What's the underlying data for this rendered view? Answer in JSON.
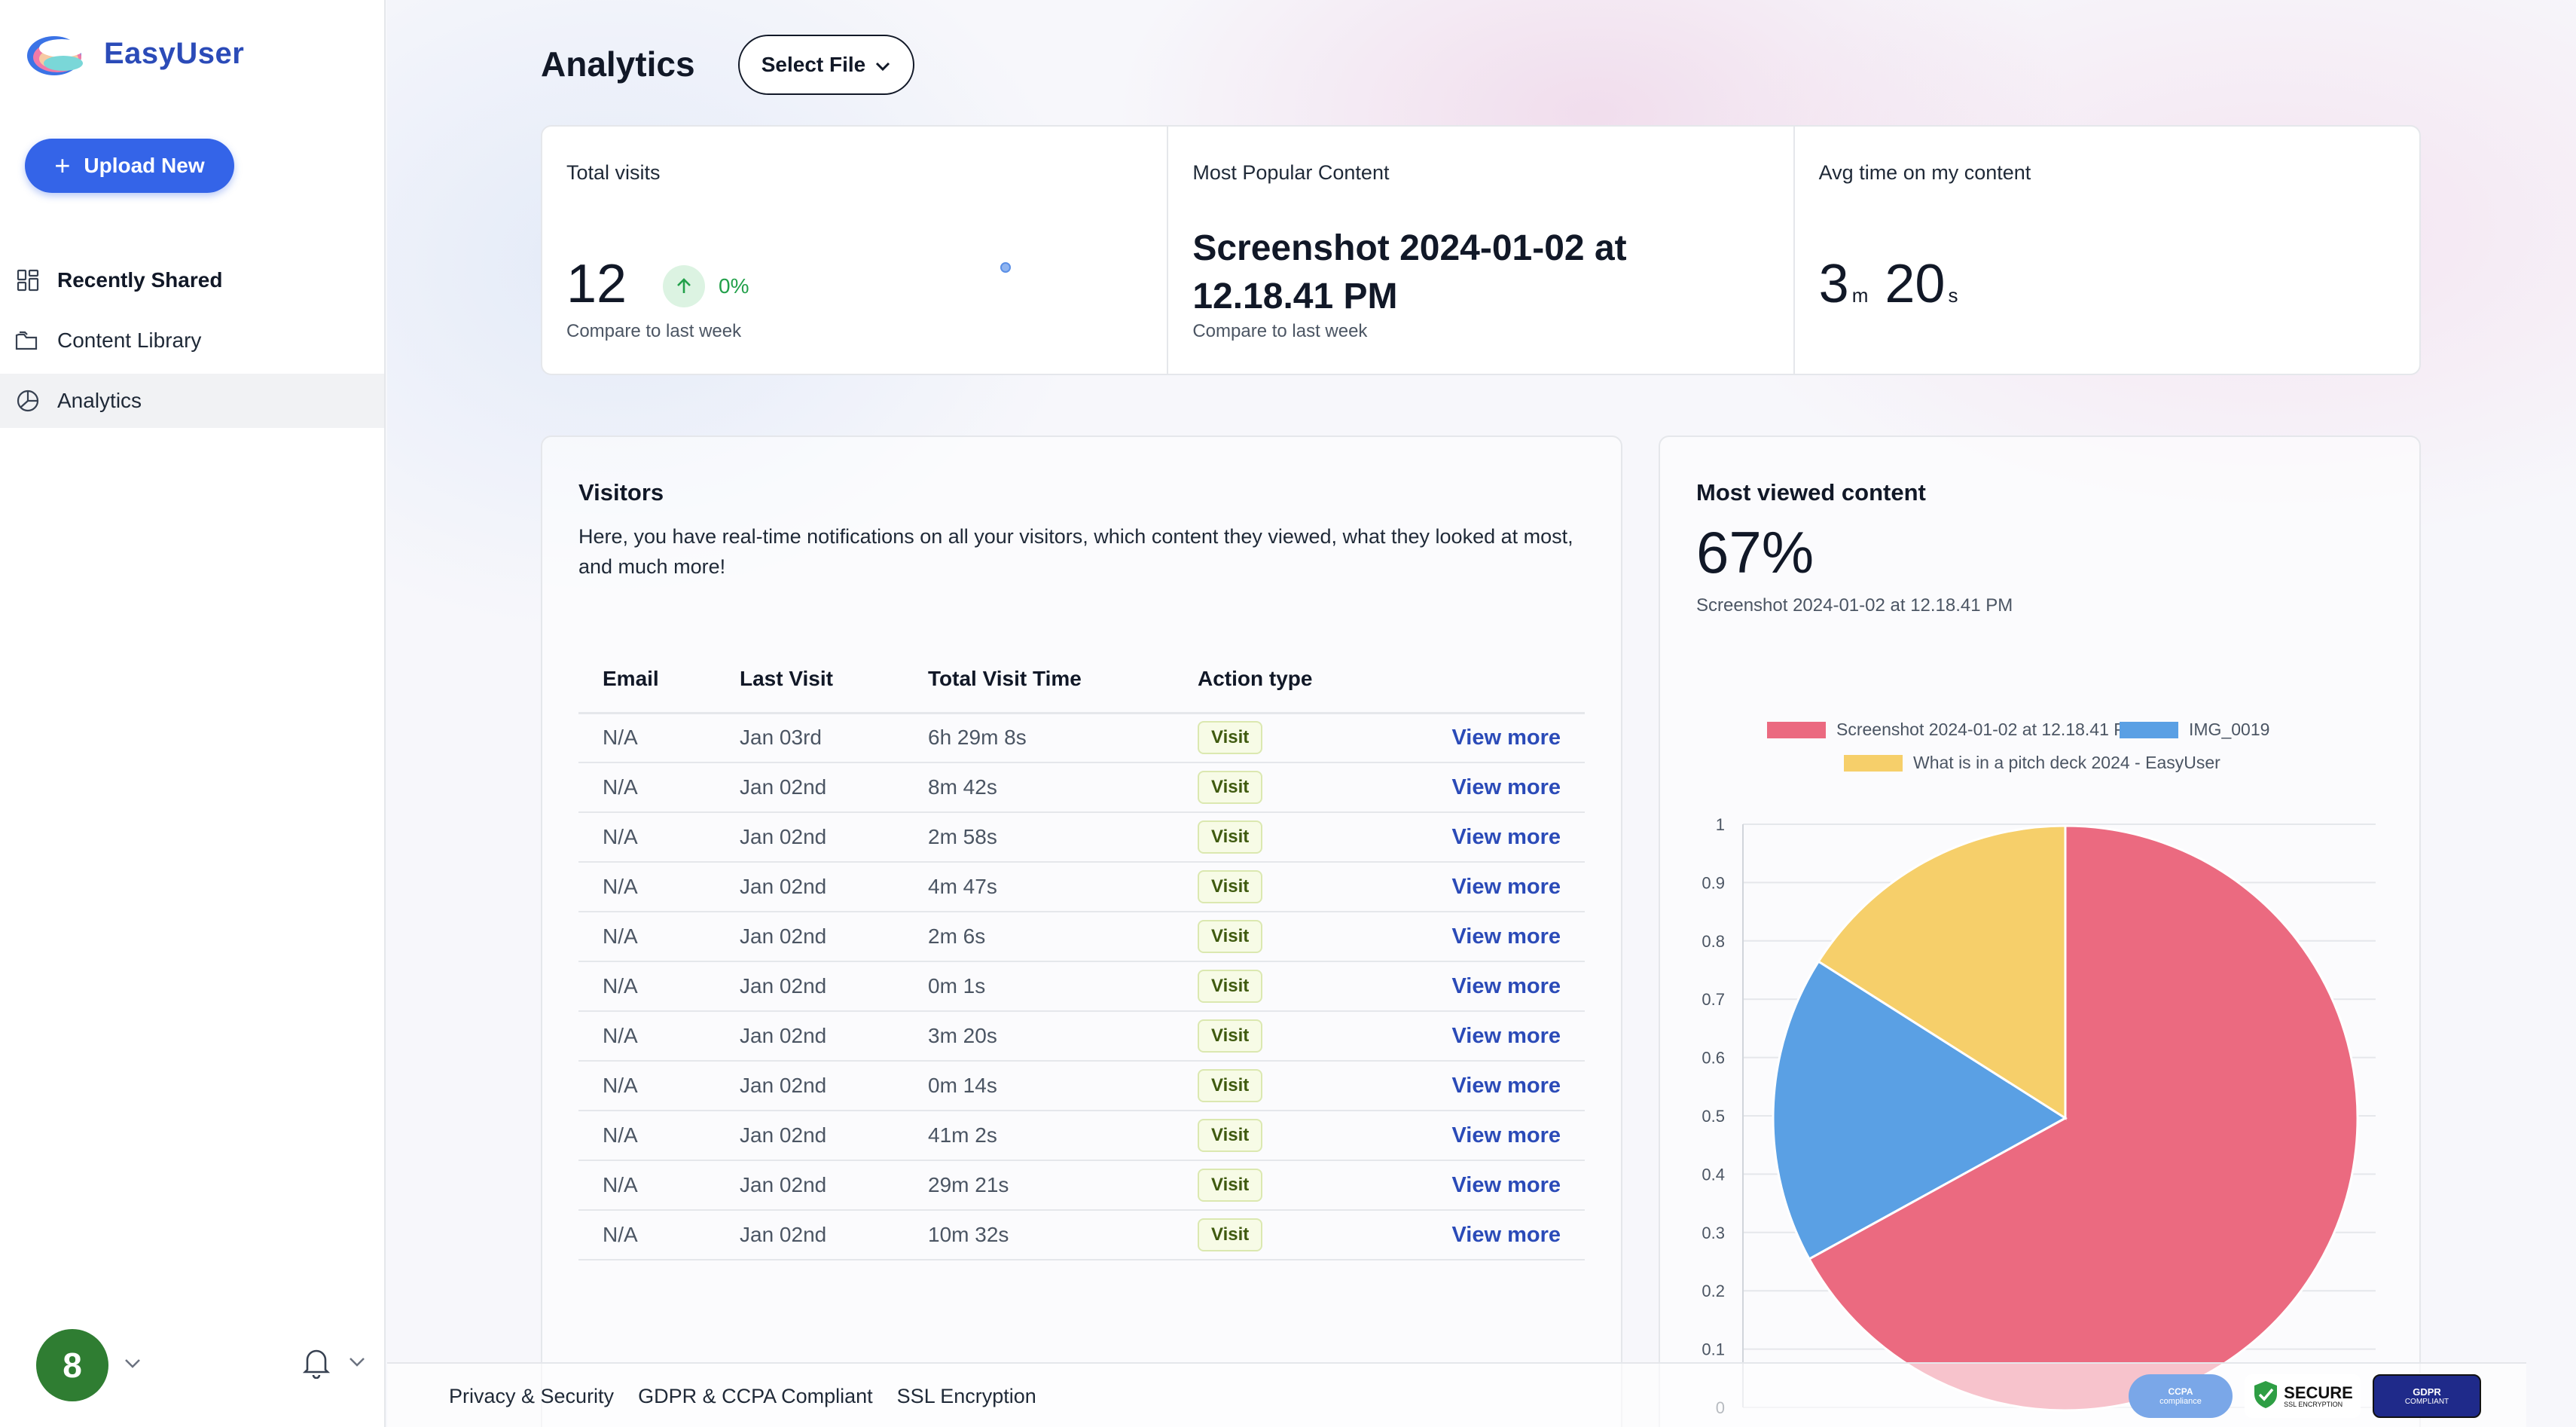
{
  "app": {
    "name": "EasyUser"
  },
  "sidebar": {
    "upload_label": "Upload New",
    "items": [
      {
        "label": "Recently Shared",
        "icon": "grid-icon"
      },
      {
        "label": "Content Library",
        "icon": "folder-icon"
      },
      {
        "label": "Analytics",
        "icon": "pie-chart-icon"
      }
    ],
    "avatar_initial": "8"
  },
  "header": {
    "title": "Analytics",
    "select_file_label": "Select File"
  },
  "stats": {
    "total_visits": {
      "label": "Total visits",
      "value": "12",
      "change": "0%",
      "compare": "Compare to last week"
    },
    "popular": {
      "label": "Most Popular Content",
      "value": "Screenshot 2024-01-02 at 12.18.41 PM",
      "compare": "Compare to last week"
    },
    "avg_time": {
      "label": "Avg time on my content",
      "minutes": "3",
      "minutes_unit": "m",
      "seconds": "20",
      "seconds_unit": "s"
    }
  },
  "visitors": {
    "title": "Visitors",
    "description": "Here, you have real-time notifications on all your visitors, which content they viewed, what they looked at most, and much more!",
    "columns": [
      "Email",
      "Last Visit",
      "Total Visit Time",
      "Action type"
    ],
    "view_more_label": "View more",
    "rows": [
      {
        "email": "N/A",
        "last": "Jan 03rd",
        "time": "6h 29m 8s",
        "action": "Visit"
      },
      {
        "email": "N/A",
        "last": "Jan 02nd",
        "time": "8m 42s",
        "action": "Visit"
      },
      {
        "email": "N/A",
        "last": "Jan 02nd",
        "time": "2m 58s",
        "action": "Visit"
      },
      {
        "email": "N/A",
        "last": "Jan 02nd",
        "time": "4m 47s",
        "action": "Visit"
      },
      {
        "email": "N/A",
        "last": "Jan 02nd",
        "time": "2m 6s",
        "action": "Visit"
      },
      {
        "email": "N/A",
        "last": "Jan 02nd",
        "time": "0m 1s",
        "action": "Visit"
      },
      {
        "email": "N/A",
        "last": "Jan 02nd",
        "time": "3m 20s",
        "action": "Visit"
      },
      {
        "email": "N/A",
        "last": "Jan 02nd",
        "time": "0m 14s",
        "action": "Visit"
      },
      {
        "email": "N/A",
        "last": "Jan 02nd",
        "time": "41m 2s",
        "action": "Visit"
      },
      {
        "email": "N/A",
        "last": "Jan 02nd",
        "time": "29m 21s",
        "action": "Visit"
      },
      {
        "email": "N/A",
        "last": "Jan 02nd",
        "time": "10m 32s",
        "action": "Visit"
      }
    ]
  },
  "most_viewed": {
    "title": "Most viewed content",
    "percent": "67%",
    "subtitle": "Screenshot 2024-01-02 at 12.18.41 PM"
  },
  "chart_data": {
    "type": "pie",
    "slices": [
      {
        "name": "Screenshot 2024-01-02 at 12.18.41 PM",
        "value": 0.67,
        "color": "#eb6a80"
      },
      {
        "name": "IMG_0019",
        "value": 0.17,
        "color": "#5aa0e4"
      },
      {
        "name": "What is in a pitch deck 2024 - EasyUser",
        "value": 0.16,
        "color": "#f6cf6a"
      }
    ],
    "yticks": [
      "0",
      "0.1",
      "0.2",
      "0.3",
      "0.4",
      "0.5",
      "0.6",
      "0.7",
      "0.8",
      "0.9",
      "1"
    ],
    "ylim": [
      0,
      1
    ],
    "legend": "top",
    "grid": true
  },
  "footer": {
    "links": [
      "Privacy & Security",
      "GDPR & CCPA Compliant",
      "SSL Encryption"
    ],
    "badges": {
      "ccpa": "CCPA",
      "ccpa_sub": "compliance",
      "secure": "SECURE",
      "secure_sub": "SSL ENCRYPTION",
      "gdpr": "GDPR",
      "gdpr_sub": "COMPLIANT"
    }
  }
}
